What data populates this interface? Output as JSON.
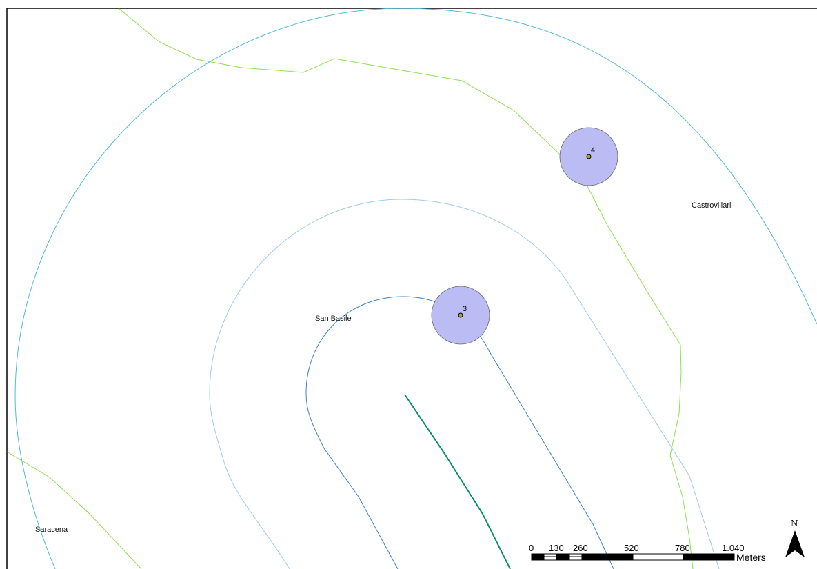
{
  "map": {
    "places": [
      {
        "name": "Castrovillari"
      },
      {
        "name": "San Basile"
      },
      {
        "name": "Saracena"
      }
    ],
    "points": [
      {
        "label": "3"
      },
      {
        "label": "4"
      }
    ],
    "colors": {
      "buffer_fill": "#bcbcf5",
      "point_fill": "#a5a52a",
      "outer_ring": "#4fb9d6",
      "middle_ring": "#9ccbea",
      "inner_ring": "#3c82c4",
      "boundary_line": "#8de04a",
      "route_line": "#0b8f6a"
    }
  },
  "scale_bar": {
    "ticks": [
      "0",
      "130",
      "260",
      "520",
      "780",
      "1.040"
    ],
    "unit": "Meters"
  },
  "north_arrow": {
    "label": "N"
  }
}
